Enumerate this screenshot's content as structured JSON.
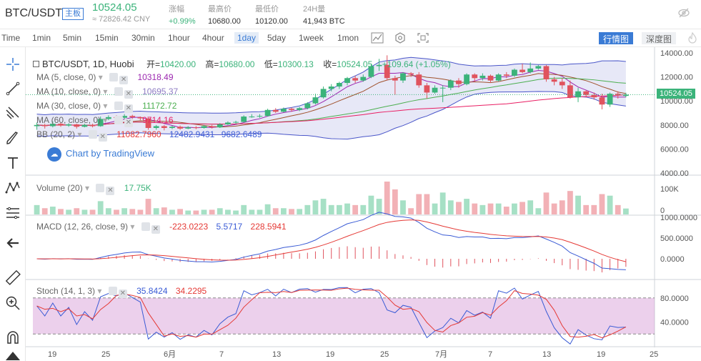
{
  "ticker": {
    "pair": "BTC/USDT",
    "board": "主板",
    "last": "10524.05",
    "cny": "≈ 72826.42 CNY",
    "stats": [
      {
        "k": "涨幅",
        "v": "+0.99%",
        "green": true
      },
      {
        "k": "最高价",
        "v": "10680.00"
      },
      {
        "k": "最低价",
        "v": "10120.00"
      },
      {
        "k": "24H量",
        "v": "41,943 BTC"
      }
    ]
  },
  "toolbar": {
    "timeframes": [
      "Time",
      "1min",
      "5min",
      "15min",
      "30min",
      "1hour",
      "4hour",
      "1day",
      "5day",
      "1week",
      "1mon"
    ],
    "active_timeframe": "1day",
    "icons": [
      "chart-type-icon",
      "indicator-icon",
      "fullscreen-icon"
    ],
    "views": [
      "行情图",
      "深度图"
    ],
    "active_view": "行情图"
  },
  "sidebar_icons": [
    "crosshair-icon",
    "trend-line-icon",
    "pitchfork-icon",
    "brush-icon",
    "text-icon",
    "pattern-icon",
    "fib-icon",
    "back-arrow-icon",
    "ruler-icon",
    "zoom-in-icon",
    "magnet-icon",
    "lock-icon"
  ],
  "main_legend": {
    "title": "BTC/USDT, 1D, Huobi",
    "open_label": "开=",
    "open": "10420.00",
    "high_label": "高=",
    "high": "10680.00",
    "low_label": "低=",
    "low": "10300.13",
    "close_label": "收=",
    "close": "10524.05",
    "change": "+109.64 (+1.05%)"
  },
  "indicators": [
    {
      "name": "MA (5, close, 0)",
      "value": "10318.49",
      "color": "#9c27b0"
    },
    {
      "name": "MA (10, close, 0)",
      "value": "10695.37",
      "color": "#8e7cc3"
    },
    {
      "name": "MA (30, close, 0)",
      "value": "11172.72",
      "color": "#4caf50"
    },
    {
      "name": "MA (60, close, 0)",
      "value": "9714.16",
      "color": "#e91e63"
    },
    {
      "name": "BB (20, 2)",
      "value": "11082.7960",
      "value2": "12482.9431",
      "value3": "9682.6489",
      "color": "#e53935"
    }
  ],
  "branding": "Chart by TradingView",
  "price_axis": [
    "14000.00",
    "12000.00",
    "10000.00",
    "8000.00",
    "6000.00",
    "4000.00"
  ],
  "price_tag": "10524.05",
  "volume": {
    "name": "Volume (20)",
    "value": "17.75K",
    "axis": [
      "100K",
      "0"
    ]
  },
  "macd": {
    "name": "MACD (12, 26, close, 9)",
    "v1": "-223.0223",
    "v2": "5.5717",
    "v3": "228.5941",
    "axis": [
      "1000.0000",
      "500.0000",
      "0.0000"
    ]
  },
  "stoch": {
    "name": "Stoch (14, 1, 3)",
    "v1": "35.8424",
    "v2": "34.2295",
    "axis": [
      "80.0000",
      "40.0000"
    ]
  },
  "time_axis": [
    "19",
    "25",
    "6月",
    "7",
    "13",
    "19",
    "25",
    "7月",
    "7",
    "13",
    "19",
    "25"
  ],
  "colors": {
    "up": "#3bb37a",
    "down": "#e0535e",
    "accent": "#3a7bd5"
  },
  "chart_data": {
    "type": "candlestick",
    "title": "BTC/USDT, 1D, Huobi",
    "ylim": [
      4000,
      14000
    ],
    "candles": [
      {
        "o": 7900,
        "c": 8000,
        "h": 8200,
        "l": 7600
      },
      {
        "o": 8000,
        "c": 7900,
        "h": 8100,
        "l": 7700
      },
      {
        "o": 7900,
        "c": 8100,
        "h": 8300,
        "l": 7800
      },
      {
        "o": 8100,
        "c": 7950,
        "h": 8200,
        "l": 7850
      },
      {
        "o": 7950,
        "c": 8050,
        "h": 8150,
        "l": 7850
      },
      {
        "o": 8050,
        "c": 7850,
        "h": 8100,
        "l": 7700
      },
      {
        "o": 7850,
        "c": 8000,
        "h": 8100,
        "l": 7800
      },
      {
        "o": 8000,
        "c": 7900,
        "h": 8100,
        "l": 7800
      },
      {
        "o": 7900,
        "c": 8500,
        "h": 8700,
        "l": 7850
      },
      {
        "o": 8500,
        "c": 8650,
        "h": 8800,
        "l": 8400
      },
      {
        "o": 8650,
        "c": 8600,
        "h": 8800,
        "l": 8500
      },
      {
        "o": 8600,
        "c": 8750,
        "h": 8900,
        "l": 8500
      },
      {
        "o": 8750,
        "c": 8650,
        "h": 8850,
        "l": 8500
      },
      {
        "o": 8650,
        "c": 8550,
        "h": 8700,
        "l": 8400
      },
      {
        "o": 8550,
        "c": 7750,
        "h": 8600,
        "l": 7600
      },
      {
        "o": 7750,
        "c": 7900,
        "h": 8000,
        "l": 7600
      },
      {
        "o": 7900,
        "c": 7750,
        "h": 8000,
        "l": 7550
      },
      {
        "o": 7750,
        "c": 7850,
        "h": 7950,
        "l": 7650
      },
      {
        "o": 7850,
        "c": 7700,
        "h": 7950,
        "l": 7600
      },
      {
        "o": 7700,
        "c": 7800,
        "h": 7900,
        "l": 7650
      },
      {
        "o": 7800,
        "c": 7750,
        "h": 7900,
        "l": 7650
      },
      {
        "o": 7750,
        "c": 7900,
        "h": 8000,
        "l": 7700
      },
      {
        "o": 7900,
        "c": 7800,
        "h": 8000,
        "l": 7700
      },
      {
        "o": 7800,
        "c": 8050,
        "h": 8150,
        "l": 7750
      },
      {
        "o": 8050,
        "c": 8200,
        "h": 8300,
        "l": 8000
      },
      {
        "o": 8200,
        "c": 8250,
        "h": 8350,
        "l": 8100
      },
      {
        "o": 8250,
        "c": 8700,
        "h": 8800,
        "l": 8200
      },
      {
        "o": 8700,
        "c": 8700,
        "h": 8900,
        "l": 8600
      },
      {
        "o": 8700,
        "c": 8750,
        "h": 8900,
        "l": 8600
      },
      {
        "o": 8750,
        "c": 9250,
        "h": 9350,
        "l": 8700
      },
      {
        "o": 9250,
        "c": 9100,
        "h": 9400,
        "l": 9000
      },
      {
        "o": 9100,
        "c": 9350,
        "h": 9450,
        "l": 9050
      },
      {
        "o": 9350,
        "c": 9250,
        "h": 9450,
        "l": 9100
      },
      {
        "o": 9250,
        "c": 9400,
        "h": 9500,
        "l": 9150
      },
      {
        "o": 9400,
        "c": 9800,
        "h": 9900,
        "l": 9300
      },
      {
        "o": 9800,
        "c": 10300,
        "h": 10600,
        "l": 9700
      },
      {
        "o": 10300,
        "c": 11000,
        "h": 11200,
        "l": 10200
      },
      {
        "o": 11000,
        "c": 11200,
        "h": 11400,
        "l": 10800
      },
      {
        "o": 11200,
        "c": 11500,
        "h": 11600,
        "l": 11000
      },
      {
        "o": 11500,
        "c": 11900,
        "h": 12000,
        "l": 11300
      },
      {
        "o": 11900,
        "c": 11700,
        "h": 12100,
        "l": 11500
      },
      {
        "o": 11700,
        "c": 12000,
        "h": 12200,
        "l": 11600
      },
      {
        "o": 12000,
        "c": 12900,
        "h": 13100,
        "l": 11900
      },
      {
        "o": 12900,
        "c": 13000,
        "h": 13500,
        "l": 12500
      },
      {
        "o": 13000,
        "c": 11900,
        "h": 13800,
        "l": 11700
      },
      {
        "o": 11900,
        "c": 11700,
        "h": 12100,
        "l": 10500
      },
      {
        "o": 11700,
        "c": 12300,
        "h": 12400,
        "l": 11500
      },
      {
        "o": 12300,
        "c": 12200,
        "h": 12400,
        "l": 12000
      },
      {
        "o": 12200,
        "c": 11300,
        "h": 12400,
        "l": 11100
      },
      {
        "o": 11300,
        "c": 10700,
        "h": 11500,
        "l": 10200
      },
      {
        "o": 10700,
        "c": 11100,
        "h": 11300,
        "l": 10600
      },
      {
        "o": 11100,
        "c": 11100,
        "h": 11300,
        "l": 9900
      },
      {
        "o": 11100,
        "c": 11700,
        "h": 11800,
        "l": 10900
      },
      {
        "o": 11700,
        "c": 11400,
        "h": 11900,
        "l": 11100
      },
      {
        "o": 11400,
        "c": 12200,
        "h": 12300,
        "l": 11300
      },
      {
        "o": 12200,
        "c": 11900,
        "h": 12300,
        "l": 11600
      },
      {
        "o": 11900,
        "c": 12100,
        "h": 12300,
        "l": 11700
      },
      {
        "o": 12100,
        "c": 11700,
        "h": 12200,
        "l": 11500
      },
      {
        "o": 11700,
        "c": 12200,
        "h": 12300,
        "l": 11600
      },
      {
        "o": 12200,
        "c": 12100,
        "h": 12400,
        "l": 11900
      },
      {
        "o": 12100,
        "c": 12600,
        "h": 12700,
        "l": 12000
      },
      {
        "o": 12600,
        "c": 12400,
        "h": 13100,
        "l": 12300
      },
      {
        "o": 12400,
        "c": 12700,
        "h": 13200,
        "l": 12300
      },
      {
        "o": 12700,
        "c": 12900,
        "h": 13000,
        "l": 12600
      },
      {
        "o": 12900,
        "c": 11800,
        "h": 13000,
        "l": 11600
      },
      {
        "o": 11800,
        "c": 11600,
        "h": 12000,
        "l": 11300
      },
      {
        "o": 11600,
        "c": 11300,
        "h": 11900,
        "l": 11000
      },
      {
        "o": 11300,
        "c": 10300,
        "h": 11700,
        "l": 10200
      },
      {
        "o": 10300,
        "c": 10800,
        "h": 11100,
        "l": 9900
      },
      {
        "o": 10800,
        "c": 10500,
        "h": 10900,
        "l": 10300
      },
      {
        "o": 10500,
        "c": 10300,
        "h": 10700,
        "l": 10100
      },
      {
        "o": 10300,
        "c": 9700,
        "h": 10600,
        "l": 9300
      },
      {
        "o": 9700,
        "c": 10600,
        "h": 10700,
        "l": 9500
      },
      {
        "o": 10600,
        "c": 10500,
        "h": 10800,
        "l": 10200
      },
      {
        "o": 10420,
        "c": 10524,
        "h": 10680,
        "l": 10300
      }
    ]
  }
}
